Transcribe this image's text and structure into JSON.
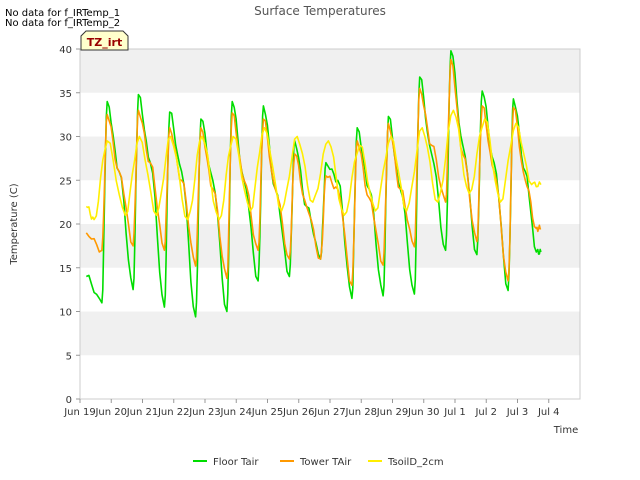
{
  "no_data_notes": [
    "No data for f_IRTemp_1",
    "No data for f_IRTemp_2"
  ],
  "chart_data": {
    "type": "line",
    "title": "Surface Temperatures",
    "xlabel": "Time",
    "ylabel": "Temperature (C)",
    "ylim": [
      0,
      40
    ],
    "xlim": [
      0,
      16
    ],
    "yticks": [
      0,
      5,
      10,
      15,
      20,
      25,
      30,
      35,
      40
    ],
    "xtick_labels": [
      "Jun 19",
      "Jun 20",
      "Jun 21",
      "Jun 22",
      "Jun 23",
      "Jun 24",
      "Jun 25",
      "Jun 26",
      "Jun 27",
      "Jun 28",
      "Jun 29",
      "Jun 30",
      "Jul 1",
      "Jul 2",
      "Jul 3",
      "Jul 4"
    ],
    "annotation": "TZ_irt",
    "legend": [
      "Floor Tair",
      "Tower TAir",
      "TsoilD_2cm"
    ],
    "legend_position": "bottom-center",
    "grid": false,
    "background_bands": "alternating grey/white horizontal bands every 5 C",
    "series": [
      {
        "name": "Floor Tair",
        "color": "#00dd00",
        "peaks": [
          34,
          34.8,
          32.8,
          32,
          34,
          33.5,
          29.5,
          27,
          31,
          32.3,
          36.8,
          39.8,
          35.2,
          34.3
        ],
        "troughs": [
          11,
          12.5,
          10.5,
          9.4,
          10,
          13.5,
          14,
          16,
          11.5,
          11.8,
          12,
          17,
          16.5,
          12.4,
          16.8
        ],
        "x": [
          0.2,
          0.7,
          0.87,
          1.25,
          1.7,
          1.87,
          2.25,
          2.7,
          2.87,
          3.25,
          3.7,
          3.87,
          4.25,
          4.7,
          4.87,
          5.25,
          5.7,
          5.87,
          6.25,
          6.7,
          6.87,
          7.25,
          7.7,
          7.87,
          8.25,
          8.7,
          8.87,
          9.25,
          9.7,
          9.87,
          10.25,
          10.7,
          10.87,
          11.25,
          11.7,
          11.87,
          12.25,
          12.7,
          12.87,
          13.25,
          13.7,
          13.87,
          14.25,
          14.6,
          14.75
        ],
        "y": [
          14,
          11,
          34,
          26,
          12.5,
          34.8,
          27,
          10.5,
          32.8,
          26,
          9.4,
          32,
          25,
          10,
          34,
          25,
          13.5,
          33.5,
          24,
          14,
          29.5,
          22,
          16,
          27,
          25,
          11.5,
          31,
          24,
          11.8,
          32.3,
          24,
          12,
          36.8,
          28,
          17,
          39.8,
          29,
          16.5,
          35.2,
          27,
          12.4,
          34.3,
          26,
          16.8,
          16.8
        ]
      },
      {
        "name": "Tower TAir",
        "color": "#ff9900",
        "peaks": [
          32.5,
          33,
          31,
          31,
          32.7,
          32,
          28,
          25.5,
          29.5,
          31.5,
          35.5,
          38.8,
          33.5,
          33.3
        ],
        "troughs": [
          17,
          17.5,
          17,
          15.2,
          13.8,
          17,
          16,
          16,
          13,
          15.3,
          17.4,
          22.5,
          18,
          13.5,
          19.5
        ],
        "x": [
          0.2,
          0.7,
          0.87,
          1.25,
          1.7,
          1.87,
          2.25,
          2.7,
          2.87,
          3.25,
          3.7,
          3.87,
          4.25,
          4.7,
          4.87,
          5.25,
          5.7,
          5.87,
          6.25,
          6.7,
          6.87,
          7.25,
          7.7,
          7.87,
          8.25,
          8.7,
          8.87,
          9.25,
          9.7,
          9.87,
          10.25,
          10.7,
          10.87,
          11.25,
          11.7,
          11.87,
          12.25,
          12.7,
          12.87,
          13.25,
          13.7,
          13.87,
          14.25,
          14.6,
          14.75
        ],
        "y": [
          19,
          17,
          32.5,
          26,
          17.5,
          33,
          27,
          17,
          31,
          25,
          15.2,
          31,
          24,
          13.8,
          32.7,
          25,
          17,
          32,
          24,
          16,
          28,
          22,
          16,
          25.5,
          24,
          13,
          29.5,
          23,
          15.3,
          31.5,
          24,
          17.4,
          35.5,
          29,
          22.5,
          38.8,
          28,
          18,
          33.5,
          26,
          13.5,
          33.3,
          25,
          19.5,
          19.5
        ]
      },
      {
        "name": "TsoilD_2cm",
        "color": "#ffee00",
        "peaks": [
          29.5,
          30,
          30,
          30,
          30,
          31,
          30,
          29.5,
          29,
          30,
          31,
          33,
          32,
          31.5
        ],
        "troughs": [
          20.5,
          21,
          21,
          20.5,
          20.5,
          21.5,
          21.5,
          22.5,
          21,
          21.5,
          21.5,
          22.5,
          23.5,
          22.5,
          24.5
        ],
        "x": [
          0.2,
          0.45,
          0.87,
          1.45,
          1.9,
          2.45,
          2.9,
          3.45,
          3.9,
          4.45,
          4.9,
          5.45,
          5.9,
          6.45,
          6.95,
          7.45,
          7.95,
          8.45,
          8.95,
          9.45,
          9.95,
          10.45,
          10.95,
          11.45,
          11.95,
          12.45,
          12.95,
          13.45,
          13.95,
          14.45,
          14.75
        ],
        "y": [
          22,
          20.5,
          29.5,
          21,
          30,
          21,
          30,
          20.5,
          30,
          20.5,
          30,
          21.5,
          31,
          21.5,
          30,
          22.5,
          29.5,
          21,
          29,
          21.5,
          30,
          21.5,
          31,
          22.5,
          33,
          23.5,
          32,
          22.5,
          31.5,
          24.5,
          24.5
        ]
      }
    ]
  }
}
